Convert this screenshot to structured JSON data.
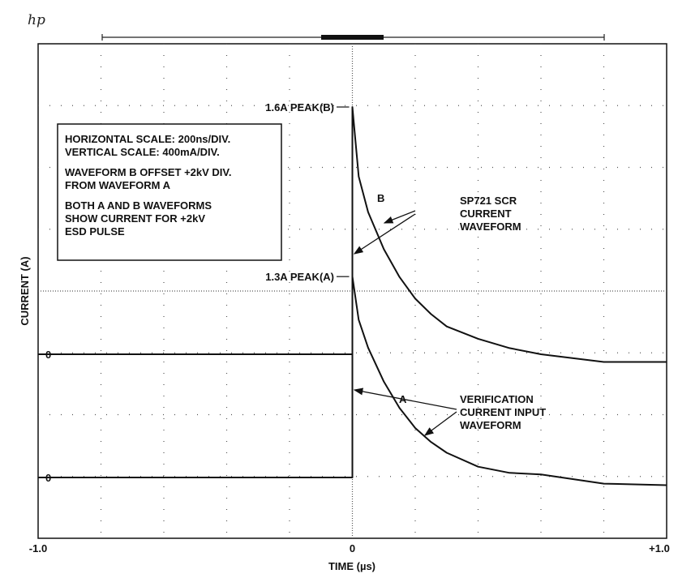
{
  "brand": "hp",
  "chart_data": {
    "type": "line",
    "xlabel": "TIME (µs)",
    "ylabel": "CURRENT (A)",
    "xlim": [
      -1.0,
      1.0
    ],
    "x_tick_labels": [
      "-1.0",
      "0",
      "+1.0"
    ],
    "grid": "dotted",
    "series": [
      {
        "name": "B",
        "zero_label": "0",
        "peak_label": "1.6A PEAK(B)",
        "t": [
          -1.0,
          -0.6,
          -0.2,
          0.0,
          0.0,
          0.02,
          0.05,
          0.1,
          0.15,
          0.2,
          0.25,
          0.3,
          0.4,
          0.5,
          0.6,
          0.8,
          1.0
        ],
        "i": [
          0.0,
          0.0,
          0.0,
          0.0,
          1.6,
          1.15,
          0.92,
          0.68,
          0.5,
          0.36,
          0.26,
          0.18,
          0.1,
          0.04,
          0.0,
          -0.05,
          -0.05
        ]
      },
      {
        "name": "A",
        "zero_label": "0",
        "peak_label": "1.3A PEAK(A)",
        "t": [
          -1.0,
          -0.6,
          -0.2,
          0.0,
          0.0,
          0.02,
          0.05,
          0.1,
          0.15,
          0.2,
          0.25,
          0.3,
          0.4,
          0.5,
          0.6,
          0.8,
          1.0
        ],
        "i": [
          0.0,
          0.0,
          0.0,
          0.0,
          1.3,
          1.02,
          0.84,
          0.62,
          0.45,
          0.32,
          0.23,
          0.16,
          0.07,
          0.03,
          0.02,
          -0.04,
          -0.05
        ]
      }
    ],
    "info_box": [
      "HORIZONTAL SCALE:  200ns/DIV.",
      "VERTICAL SCALE:  400mA/DIV.",
      "WAVEFORM B OFFSET +2kV DIV.",
      "FROM WAVEFORM A",
      "BOTH A AND B WAVEFORMS",
      "SHOW CURRENT FOR +2kV",
      "ESD PULSE"
    ],
    "annotations": {
      "scr_label": [
        "SP721 SCR",
        "CURRENT",
        "WAVEFORM"
      ],
      "verify_label": [
        "VERIFICATION",
        "CURRENT INPUT",
        "WAVEFORM"
      ]
    }
  }
}
